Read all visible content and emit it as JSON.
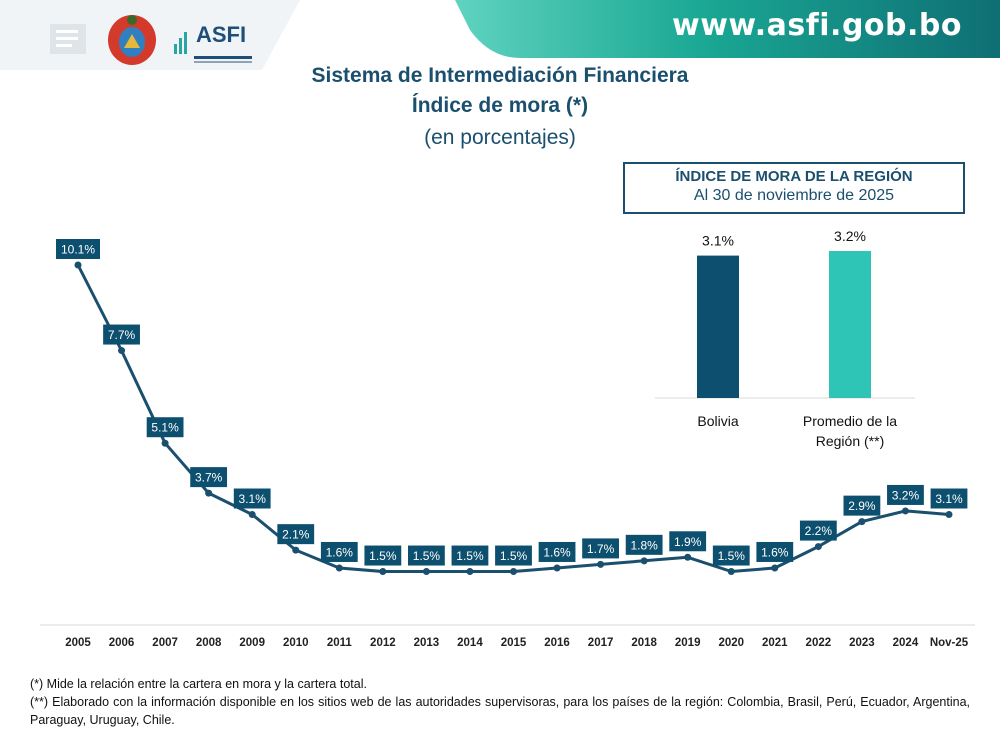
{
  "header": {
    "url": "www.asfi.gob.bo",
    "logo_text": "ASFI",
    "colors": {
      "band": "#1aa894",
      "band_dark": "#0f6f74"
    }
  },
  "titles": {
    "line1": "Sistema de Intermediación Financiera",
    "line2": "Índice de mora (*)",
    "line3": "(en porcentajes)"
  },
  "region_box": {
    "title": "ÍNDICE DE MORA DE LA REGIÓN",
    "subtitle": "Al 30 de noviembre de 2025"
  },
  "chart_data": [
    {
      "type": "line",
      "title": "Índice de mora (*)",
      "categories": [
        "2005",
        "2006",
        "2007",
        "2008",
        "2009",
        "2010",
        "2011",
        "2012",
        "2013",
        "2014",
        "2015",
        "2016",
        "2017",
        "2018",
        "2019",
        "2020",
        "2021",
        "2022",
        "2023",
        "2024",
        "Nov-25"
      ],
      "values": [
        10.1,
        7.7,
        5.1,
        3.7,
        3.1,
        2.1,
        1.6,
        1.5,
        1.5,
        1.5,
        1.5,
        1.6,
        1.7,
        1.8,
        1.9,
        1.5,
        1.6,
        2.2,
        2.9,
        3.2,
        3.1
      ],
      "labels": [
        "10.1%",
        "7.7%",
        "5.1%",
        "3.7%",
        "3.1%",
        "2.1%",
        "1.6%",
        "1.5%",
        "1.5%",
        "1.5%",
        "1.5%",
        "1.6%",
        "1.7%",
        "1.8%",
        "1.9%",
        "1.5%",
        "1.6%",
        "2.2%",
        "2.9%",
        "3.2%",
        "3.1%"
      ],
      "ylim": [
        0,
        11
      ],
      "color": "#1b4f6e"
    },
    {
      "type": "bar",
      "title": "ÍNDICE DE MORA DE LA REGIÓN",
      "categories": [
        [
          "Bolivia"
        ],
        [
          "Promedio de la",
          "Región (**)"
        ]
      ],
      "values": [
        3.1,
        3.2
      ],
      "labels": [
        "3.1%",
        "3.2%"
      ],
      "colors": [
        "#0d4f6e",
        "#2ec4b6"
      ],
      "ylim": [
        0,
        3.6
      ]
    }
  ],
  "footnotes": {
    "note1": "(*) Mide la relación entre la cartera en mora y la cartera total.",
    "note2": "(**) Elaborado con la información disponible en los sitios web de las autoridades supervisoras, para los países de la región: Colombia, Brasil, Perú, Ecuador, Argentina, Paraguay, Uruguay, Chile."
  }
}
